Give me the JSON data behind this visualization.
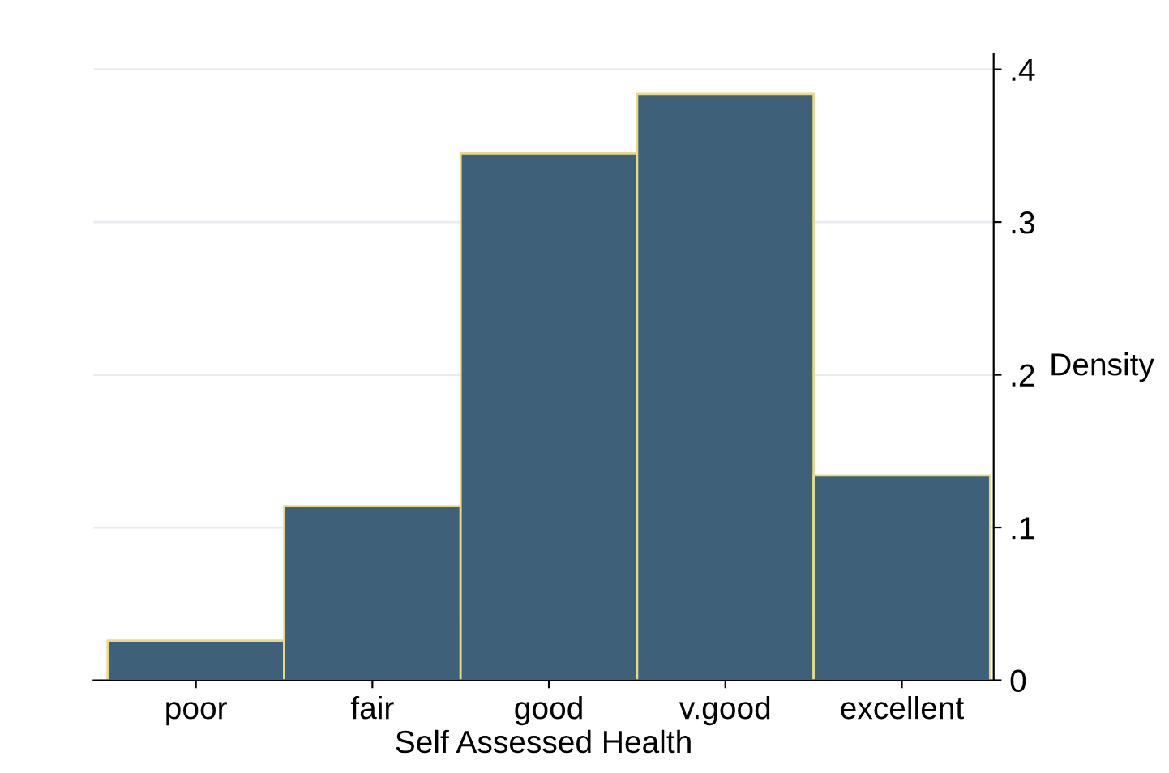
{
  "chart_data": {
    "type": "bar",
    "xlabel": "Self Assessed Health",
    "ylabel": "Density",
    "categories": [
      "poor",
      "fair",
      "good",
      "v.good",
      "excellent"
    ],
    "values": [
      0.026,
      0.114,
      0.345,
      0.384,
      0.134
    ],
    "color": "#3e6079",
    "ylim": [
      0,
      0.41
    ],
    "yticks": [
      0,
      {
        "value": 0.1,
        "label": ".1"
      },
      {
        "value": 0.2,
        "label": ".2"
      },
      {
        "value": 0.3,
        "label": ".3"
      },
      {
        "value": 0.4,
        "label": ".4"
      }
    ],
    "grid": "y"
  }
}
